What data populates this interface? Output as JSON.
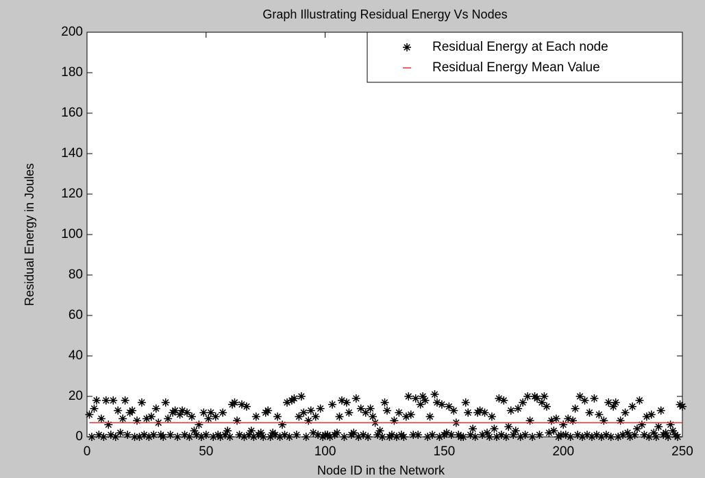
{
  "chart_data": {
    "type": "scatter",
    "title": "Graph Illustrating Residual Energy Vs Nodes",
    "x_label": "Node ID in the Network",
    "y_label": "Residual Energy in Joules",
    "xlim": [
      0,
      250
    ],
    "ylim": [
      0,
      200
    ],
    "xticks": [
      0,
      50,
      100,
      150,
      200,
      250
    ],
    "yticks": [
      0,
      20,
      40,
      60,
      80,
      100,
      120,
      140,
      160,
      180,
      200
    ],
    "legend": "upper right",
    "series": [
      {
        "name": "Residual Energy at Each node",
        "color": "#000000",
        "marker": "*",
        "x": [
          1,
          2,
          3,
          4,
          5,
          6,
          7,
          8,
          9,
          10,
          11,
          12,
          13,
          14,
          15,
          16,
          17,
          18,
          19,
          20,
          21,
          22,
          23,
          24,
          25,
          26,
          27,
          28,
          29,
          30,
          31,
          32,
          33,
          34,
          35,
          36,
          37,
          38,
          39,
          40,
          41,
          42,
          43,
          44,
          45,
          46,
          47,
          48,
          49,
          50,
          51,
          52,
          53,
          54,
          55,
          56,
          57,
          58,
          59,
          60,
          61,
          62,
          63,
          64,
          65,
          66,
          67,
          68,
          69,
          70,
          71,
          72,
          73,
          74,
          75,
          76,
          77,
          78,
          79,
          80,
          81,
          82,
          83,
          84,
          85,
          86,
          87,
          88,
          89,
          90,
          91,
          92,
          93,
          94,
          95,
          96,
          97,
          98,
          99,
          100,
          101,
          102,
          103,
          104,
          105,
          106,
          107,
          108,
          109,
          110,
          111,
          112,
          113,
          114,
          115,
          116,
          117,
          118,
          119,
          120,
          121,
          122,
          123,
          124,
          125,
          126,
          127,
          128,
          129,
          130,
          131,
          132,
          133,
          134,
          135,
          136,
          137,
          138,
          139,
          140,
          141,
          142,
          143,
          144,
          145,
          146,
          147,
          148,
          149,
          150,
          151,
          152,
          153,
          154,
          155,
          156,
          157,
          158,
          159,
          160,
          161,
          162,
          163,
          164,
          165,
          166,
          167,
          168,
          169,
          170,
          171,
          172,
          173,
          174,
          175,
          176,
          177,
          178,
          179,
          180,
          181,
          182,
          183,
          184,
          185,
          186,
          187,
          188,
          189,
          190,
          191,
          192,
          193,
          194,
          195,
          196,
          197,
          198,
          199,
          200,
          201,
          202,
          203,
          204,
          205,
          206,
          207,
          208,
          209,
          210,
          211,
          212,
          213,
          214,
          215,
          216,
          217,
          218,
          219,
          220,
          221,
          222,
          223,
          224,
          225,
          226,
          227,
          228,
          229,
          230,
          231,
          232,
          233,
          234,
          235,
          236,
          237,
          238,
          239,
          240,
          241,
          242,
          243,
          244,
          245,
          246,
          247,
          248,
          249,
          250
        ],
        "values": [
          11,
          0,
          14,
          18,
          1,
          9,
          0,
          18,
          6,
          1,
          18,
          0,
          13,
          2,
          9,
          18,
          1,
          12,
          13,
          0,
          8,
          0,
          17,
          1,
          9,
          0,
          10,
          1,
          14,
          7,
          1,
          0,
          17,
          9,
          1,
          12,
          13,
          0,
          11,
          13,
          1,
          12,
          0,
          10,
          3,
          1,
          6,
          0,
          12,
          1,
          9,
          12,
          0,
          10,
          1,
          0,
          12,
          1,
          3,
          0,
          16,
          17,
          8,
          1,
          16,
          0,
          15,
          1,
          3,
          0,
          10,
          1,
          2,
          0,
          12,
          13,
          0,
          2,
          1,
          10,
          0,
          6,
          1,
          17,
          0,
          18,
          19,
          1,
          10,
          20,
          12,
          0,
          8,
          13,
          2,
          10,
          1,
          14,
          0,
          1,
          1,
          0,
          16,
          1,
          2,
          10,
          18,
          0,
          17,
          12,
          1,
          2,
          19,
          0,
          14,
          1,
          12,
          0,
          14,
          10,
          7,
          1,
          3,
          0,
          17,
          13,
          0,
          1,
          8,
          0,
          12,
          1,
          0,
          10,
          20,
          11,
          1,
          19,
          1,
          16,
          20,
          18,
          0,
          10,
          1,
          21,
          17,
          0,
          16,
          1,
          2,
          15,
          1,
          13,
          7,
          1,
          0,
          0,
          17,
          12,
          1,
          4,
          0,
          12,
          13,
          1,
          12,
          2,
          0,
          10,
          4,
          0,
          19,
          1,
          18,
          0,
          5,
          13,
          1,
          3,
          14,
          0,
          17,
          1,
          20,
          8,
          0,
          20,
          19,
          1,
          17,
          20,
          15,
          2,
          8,
          3,
          9,
          0,
          1,
          6,
          1,
          9,
          0,
          8,
          14,
          1,
          20,
          0,
          18,
          1,
          12,
          0,
          19,
          1,
          11,
          0,
          8,
          1,
          17,
          0,
          15,
          17,
          0,
          8,
          1,
          12,
          2,
          0,
          15,
          1,
          4,
          18,
          6,
          1,
          10,
          0,
          11,
          2,
          0,
          5,
          13,
          1,
          2,
          0,
          6,
          3,
          1,
          0,
          16,
          15
        ]
      },
      {
        "name": "Residual Energy Mean Value",
        "color": "#e03030",
        "marker": "line",
        "x": [
          1,
          250
        ],
        "values": [
          7,
          7
        ]
      }
    ]
  }
}
